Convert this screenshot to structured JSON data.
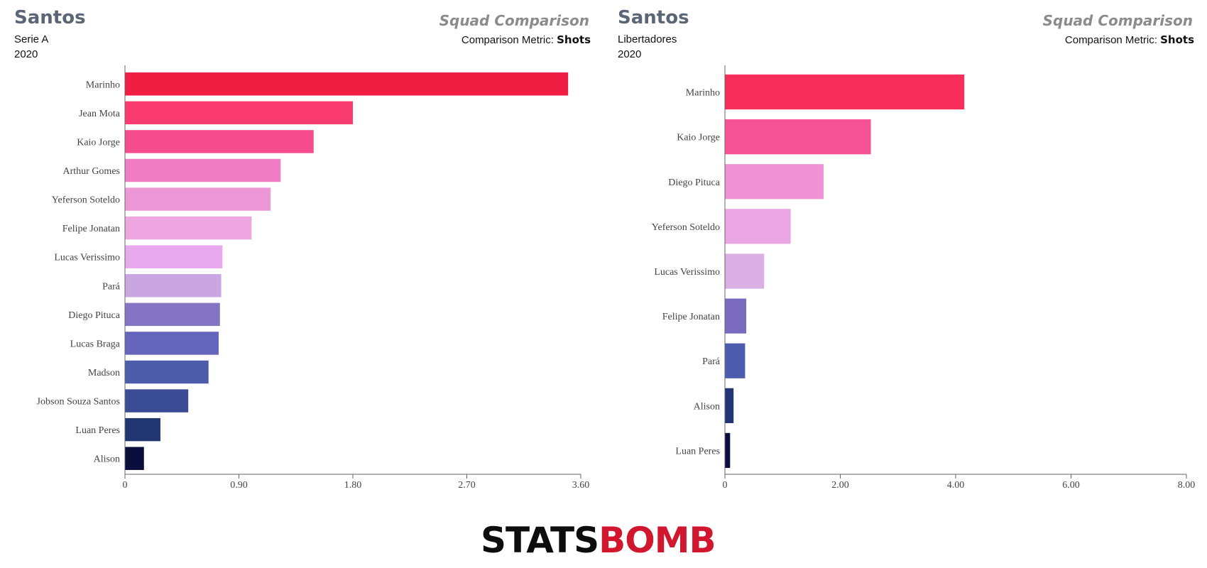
{
  "left": {
    "team": "Santos",
    "competition": "Serie A",
    "season": "2020",
    "panel_title": "Squad Comparison",
    "metric_label": "Comparison Metric:",
    "metric_value": "Shots"
  },
  "right": {
    "team": "Santos",
    "competition": "Libertadores",
    "season": "2020",
    "panel_title": "Squad Comparison",
    "metric_label": "Comparison Metric:",
    "metric_value": "Shots"
  },
  "logo": {
    "part1": "STATS",
    "part2": "BOMB"
  },
  "chart_data": [
    {
      "type": "bar",
      "orientation": "horizontal",
      "categories": [
        "Marinho",
        "Jean Mota",
        "Kaio Jorge",
        "Arthur Gomes",
        "Yeferson Soteldo",
        "Felipe Jonatan",
        "Lucas Verissimo",
        "Pará",
        "Diego Pituca",
        "Lucas Braga",
        "Madson",
        "Jobson Souza Santos",
        "Luan Peres",
        "Alison"
      ],
      "values": [
        3.5,
        1.8,
        1.49,
        1.23,
        1.15,
        1.0,
        0.77,
        0.76,
        0.75,
        0.74,
        0.66,
        0.5,
        0.28,
        0.15
      ],
      "colors": [
        "#f01e43",
        "#f93b70",
        "#f54c8e",
        "#f17ec4",
        "#ee97d6",
        "#eea6e1",
        "#e9a9ee",
        "#c9a5e2",
        "#8474c3",
        "#6565be",
        "#4d5dac",
        "#3b4c96",
        "#213670",
        "#0b0e3d"
      ],
      "xlim": [
        0,
        3.6
      ],
      "xticks": [
        "0",
        "0.90",
        "1.80",
        "2.70",
        "3.60"
      ]
    },
    {
      "type": "bar",
      "orientation": "horizontal",
      "categories": [
        "Marinho",
        "Kaio Jorge",
        "Diego Pituca",
        "Yeferson Soteldo",
        "Lucas Verissimo",
        "Felipe Jonatan",
        "Pará",
        "Alison",
        "Luan Peres"
      ],
      "values": [
        4.15,
        2.53,
        1.71,
        1.14,
        0.68,
        0.37,
        0.35,
        0.15,
        0.09
      ],
      "colors": [
        "#f72d5a",
        "#f65394",
        "#ef91d5",
        "#eaa6e3",
        "#dbaee6",
        "#7a6bc0",
        "#4d5cae",
        "#233474",
        "#0b0e3d"
      ],
      "xlim": [
        0,
        8
      ],
      "xticks": [
        "0",
        "2.00",
        "4.00",
        "6.00",
        "8.00"
      ]
    }
  ]
}
